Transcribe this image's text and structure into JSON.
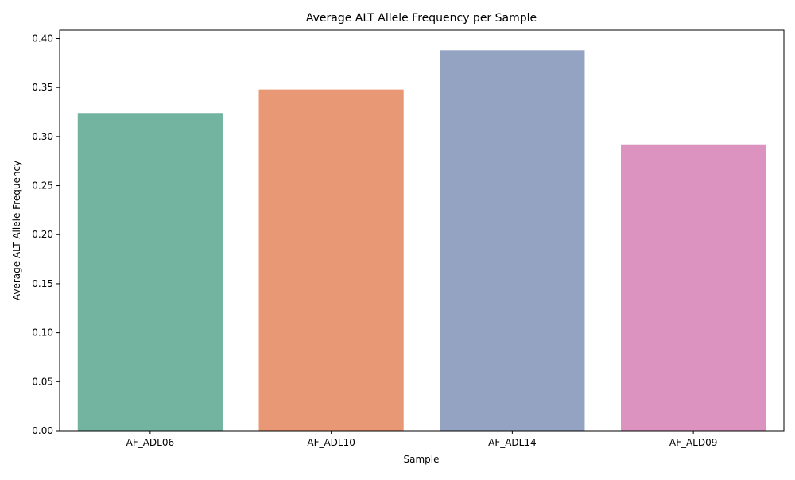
{
  "chart_data": {
    "type": "bar",
    "title": "Average ALT Allele Frequency per Sample",
    "xlabel": "Sample",
    "ylabel": "Average ALT Allele Frequency",
    "categories": [
      "AF_ADL06",
      "AF_ADL10",
      "AF_ADL14",
      "AF_ALD09"
    ],
    "values": [
      0.324,
      0.348,
      0.388,
      0.292
    ],
    "colors": [
      "#73b4a0",
      "#e99876",
      "#95a3c2",
      "#dc93bf"
    ],
    "ylim": [
      0,
      0.4085
    ],
    "yticks": [
      0.0,
      0.05,
      0.1,
      0.15,
      0.2,
      0.25,
      0.3,
      0.35,
      0.4
    ],
    "ytick_labels": [
      "0.00",
      "0.05",
      "0.10",
      "0.15",
      "0.20",
      "0.25",
      "0.30",
      "0.35",
      "0.40"
    ],
    "grid": false,
    "legend": "none"
  }
}
